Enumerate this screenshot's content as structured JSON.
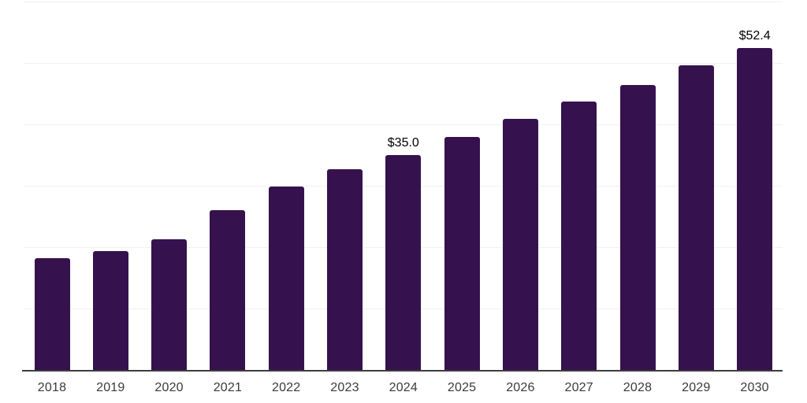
{
  "chart_data": {
    "type": "bar",
    "title": "",
    "xlabel": "",
    "ylabel": "",
    "categories": [
      "2018",
      "2019",
      "2020",
      "2021",
      "2022",
      "2023",
      "2024",
      "2025",
      "2026",
      "2027",
      "2028",
      "2029",
      "2030"
    ],
    "values": [
      18.3,
      19.5,
      21.4,
      26.1,
      30.0,
      32.7,
      35.0,
      38.0,
      40.9,
      43.7,
      46.5,
      49.7,
      52.4
    ],
    "bar_labels": [
      "",
      "",
      "",
      "",
      "",
      "",
      "$35.0",
      "",
      "",
      "",
      "",
      "",
      "$52.4"
    ],
    "ylim": [
      0,
      60
    ],
    "grid": "horizontal gridlines every 10 units, no y-axis tick labels",
    "legend": "none",
    "colors": {
      "bar": "#35124d",
      "value_label": "#000000",
      "x_tick_label": "#3a3a3a",
      "axis_line": "#3d3d3d",
      "gridline": "#f1f1f4",
      "background": "#ffffff"
    }
  }
}
